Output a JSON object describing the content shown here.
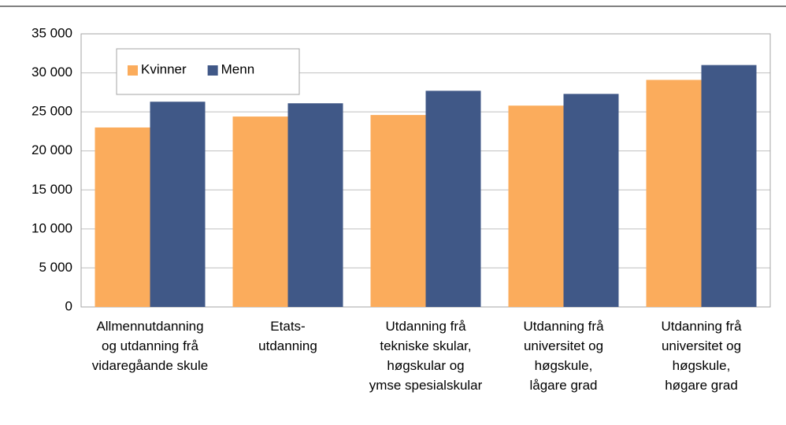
{
  "chart_data": {
    "type": "bar",
    "categories": [
      "Allmennutdanning\nog utdanning frå\nvidaregåande skule",
      "Etats-\nutdanning",
      "Utdanning frå\ntekniske skular,\nhøgskular og\nymse spesialskular",
      "Utdanning frå\nuniversitet og\nhøgskule,\nlågare grad",
      "Utdanning frå\nuniversitet og\nhøgskule,\nhøgare grad"
    ],
    "series": [
      {
        "name": "Kvinner",
        "color": "#fbac5c",
        "values": [
          23000,
          24400,
          24600,
          25800,
          29100
        ]
      },
      {
        "name": "Menn",
        "color": "#405887",
        "values": [
          26300,
          26100,
          27700,
          27300,
          31000
        ]
      }
    ],
    "ylim": [
      0,
      35000
    ],
    "yticks": [
      0,
      {
        "value": 5000,
        "label": "5 000"
      },
      {
        "value": 10000,
        "label": "10 000"
      },
      {
        "value": 15000,
        "label": "15 000"
      },
      {
        "value": 20000,
        "label": "20 000"
      },
      {
        "value": 25000,
        "label": "25 000"
      },
      {
        "value": 30000,
        "label": "30 000"
      },
      {
        "value": 35000,
        "label": "35 000"
      }
    ],
    "grid": true,
    "legend": "top-left"
  }
}
